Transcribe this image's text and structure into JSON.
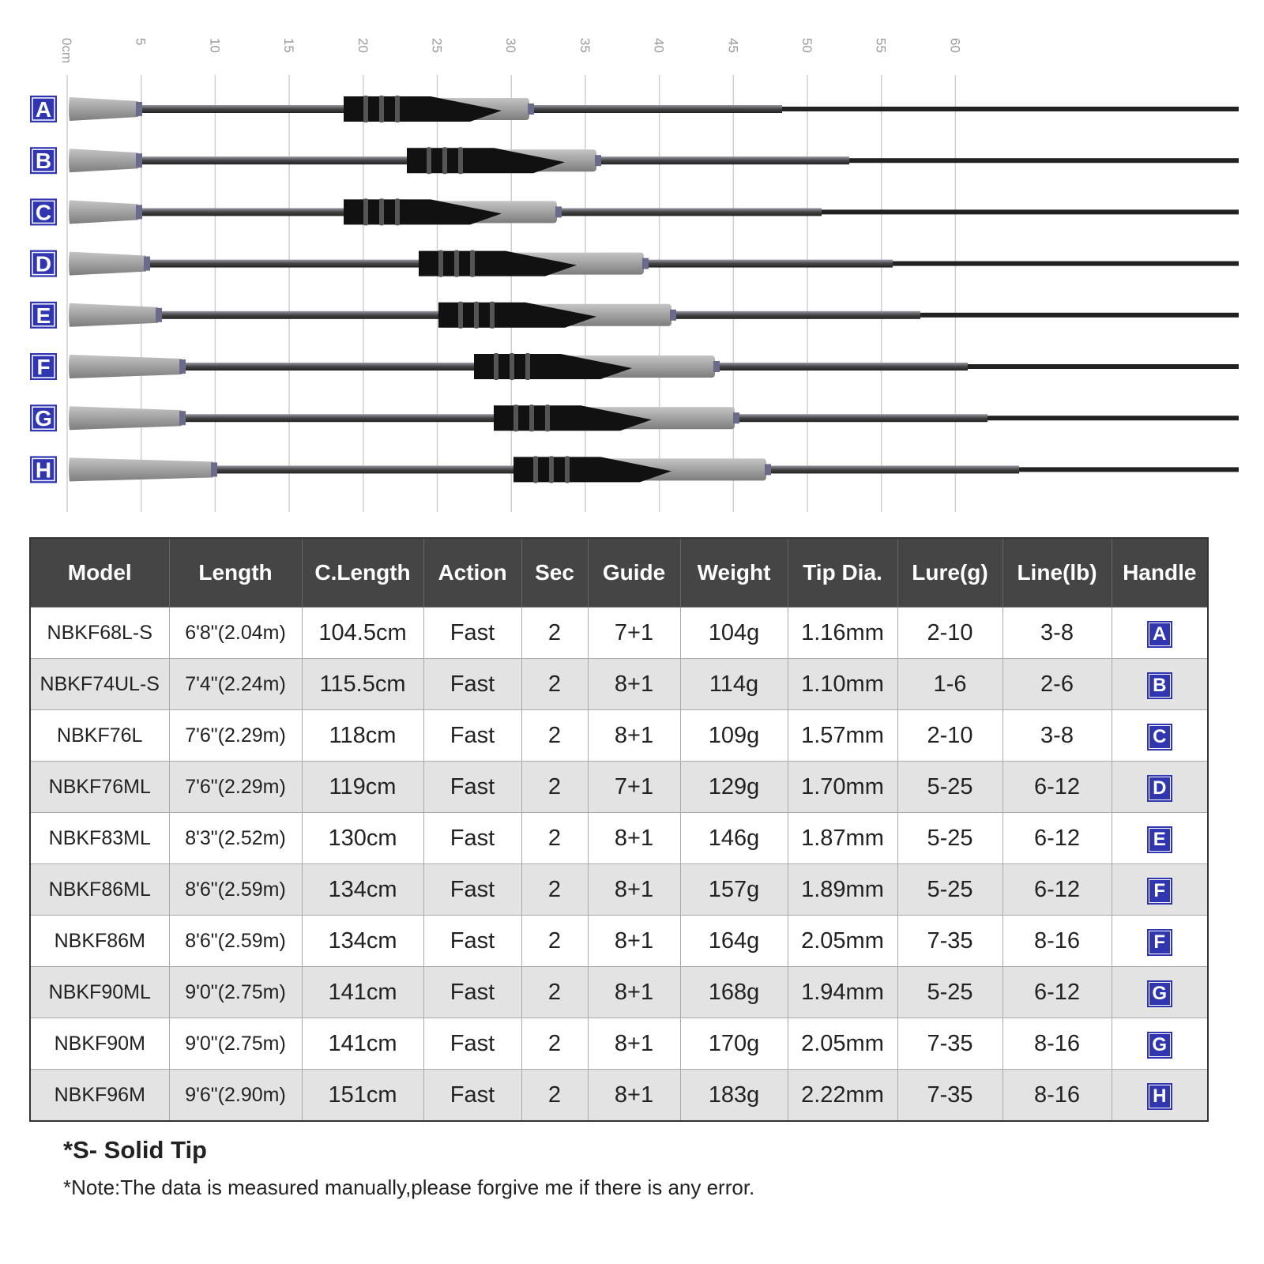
{
  "ruler": {
    "ticks": [
      "0cm",
      "5",
      "10",
      "15",
      "20",
      "25",
      "30",
      "35",
      "40",
      "45",
      "50",
      "55",
      "60"
    ],
    "rods": [
      "A",
      "B",
      "C",
      "D",
      "E",
      "F",
      "G",
      "H"
    ]
  },
  "table": {
    "header": [
      "Model",
      "Length",
      "C.Length",
      "Action",
      "Sec",
      "Guide",
      "Weight",
      "Tip Dia.",
      "Lure(g)",
      "Line(lb)",
      "Handle"
    ],
    "rows": [
      [
        "NBKF68L-S",
        "6'8\"(2.04m)",
        "104.5cm",
        "Fast",
        "2",
        "7+1",
        "104g",
        "1.16mm",
        "2-10",
        "3-8",
        "A"
      ],
      [
        "NBKF74UL-S",
        "7'4\"(2.24m)",
        "115.5cm",
        "Fast",
        "2",
        "8+1",
        "114g",
        "1.10mm",
        "1-6",
        "2-6",
        "B"
      ],
      [
        "NBKF76L",
        "7'6\"(2.29m)",
        "118cm",
        "Fast",
        "2",
        "8+1",
        "109g",
        "1.57mm",
        "2-10",
        "3-8",
        "C"
      ],
      [
        "NBKF76ML",
        "7'6\"(2.29m)",
        "119cm",
        "Fast",
        "2",
        "7+1",
        "129g",
        "1.70mm",
        "5-25",
        "6-12",
        "D"
      ],
      [
        "NBKF83ML",
        "8'3\"(2.52m)",
        "130cm",
        "Fast",
        "2",
        "8+1",
        "146g",
        "1.87mm",
        "5-25",
        "6-12",
        "E"
      ],
      [
        "NBKF86ML",
        "8'6\"(2.59m)",
        "134cm",
        "Fast",
        "2",
        "8+1",
        "157g",
        "1.89mm",
        "5-25",
        "6-12",
        "F"
      ],
      [
        "NBKF86M",
        "8'6\"(2.59m)",
        "134cm",
        "Fast",
        "2",
        "8+1",
        "164g",
        "2.05mm",
        "7-35",
        "8-16",
        "F"
      ],
      [
        "NBKF90ML",
        "9'0\"(2.75m)",
        "141cm",
        "Fast",
        "2",
        "8+1",
        "168g",
        "1.94mm",
        "5-25",
        "6-12",
        "G"
      ],
      [
        "NBKF90M",
        "9'0\"(2.75m)",
        "141cm",
        "Fast",
        "2",
        "8+1",
        "170g",
        "2.05mm",
        "7-35",
        "8-16",
        "G"
      ],
      [
        "NBKF96M",
        "9'6\"(2.90m)",
        "151cm",
        "Fast",
        "2",
        "8+1",
        "183g",
        "2.22mm",
        "7-35",
        "8-16",
        "H"
      ]
    ]
  },
  "notes": {
    "solid_tip": "*S- Solid Tip",
    "disclaimer": "*Note:The data is measured manually,please forgive me if there is any error."
  }
}
